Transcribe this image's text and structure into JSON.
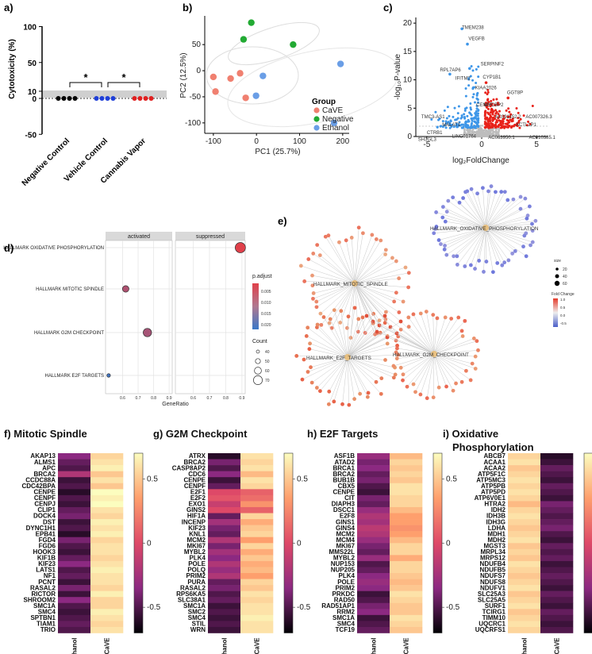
{
  "chart_data": [
    {
      "id": "a",
      "panel_label": "a)",
      "type": "scatter",
      "ylabel": "Cytotoxicity (%)",
      "yticks": [
        100,
        50,
        10,
        0,
        -50
      ],
      "ylim": [
        -50,
        100
      ],
      "categories": [
        "Negative Control",
        "Vehicle Control",
        "Cannabis Vapor"
      ],
      "colors": [
        "#000000",
        "#1f3fd8",
        "#e02020"
      ],
      "values": [
        [
          0,
          0,
          0,
          0
        ],
        [
          0,
          0,
          0,
          0
        ],
        [
          0,
          0,
          0,
          0
        ]
      ],
      "significance": [
        {
          "from": 0,
          "to": 1,
          "label": "*"
        },
        {
          "from": 1,
          "to": 2,
          "label": "*"
        }
      ]
    },
    {
      "id": "b",
      "panel_label": "b)",
      "type": "scatter",
      "xlabel": "PC1 (25.7%)",
      "ylabel": "PC2 (12.5%)",
      "xlim": [
        -120,
        215
      ],
      "ylim": [
        -120,
        105
      ],
      "xticks": [
        -100,
        0,
        100,
        200
      ],
      "yticks": [
        50,
        0,
        -50,
        -100
      ],
      "legend_title": "Group",
      "series": [
        {
          "name": "CaVE",
          "color": "#f08070",
          "points": [
            [
              -60,
              -15
            ],
            [
              -38,
              -5
            ],
            [
              -100,
              -12
            ],
            [
              -95,
              -40
            ],
            [
              -25,
              -52
            ]
          ]
        },
        {
          "name": "Negative",
          "color": "#22aa33",
          "points": [
            [
              -12,
              92
            ],
            [
              -30,
              60
            ],
            [
              85,
              50
            ]
          ]
        },
        {
          "name": "Ethanol",
          "color": "#6a9ee6",
          "points": [
            [
              15,
              -10
            ],
            [
              -1,
              -48
            ],
            [
              195,
              13
            ],
            [
              180,
              -100
            ]
          ]
        }
      ]
    },
    {
      "id": "c",
      "panel_label": "c)",
      "type": "scatter",
      "xlabel": "log₂FoldChange",
      "ylabel": "-log₁₀P-value",
      "xlim": [
        -6,
        6
      ],
      "ylim": [
        0,
        21
      ],
      "xticks": [
        -5,
        0,
        5
      ],
      "yticks": [
        20,
        15,
        10,
        5,
        0
      ],
      "labels": [
        {
          "text": "TMEM238",
          "x": -1.8,
          "y": 19
        },
        {
          "text": "VEGFB",
          "x": -1.2,
          "y": 17
        },
        {
          "text": "SERPINF2",
          "x": -0.1,
          "y": 12.5
        },
        {
          "text": "RPL7AP6",
          "x": -3.8,
          "y": 11.5
        },
        {
          "text": "CYP1B1",
          "x": 0.1,
          "y": 10.2
        },
        {
          "text": "IFITM2",
          "x": -2.4,
          "y": 10
        },
        {
          "text": "GGT8P",
          "x": 2.3,
          "y": 7.5
        },
        {
          "text": "KIAA2026",
          "x": -0.6,
          "y": 8.3
        },
        {
          "text": "MYCBP2",
          "x": 0.2,
          "y": 5.3
        },
        {
          "text": "CENPF",
          "x": -0.5,
          "y": 5.3
        },
        {
          "text": "TMC3-AS1",
          "x": -5.5,
          "y": 3.2
        },
        {
          "text": "AC091152.2",
          "x": 1.2,
          "y": 3.2
        },
        {
          "text": "AC007326.3",
          "x": 4.0,
          "y": 3.2
        },
        {
          "text": "ACTL1P1",
          "x": 3.1,
          "y": 1.8
        },
        {
          "text": "MALAT1",
          "x": -3.6,
          "y": 1.8
        },
        {
          "text": "CTRB1",
          "x": -5.0,
          "y": 0.4
        },
        {
          "text": "SH3GL3",
          "x": -5.8,
          "y": -0.8
        },
        {
          "text": "LINC01764",
          "x": -2.7,
          "y": -0.2
        },
        {
          "text": "AC063950.1",
          "x": 0.6,
          "y": -0.4
        },
        {
          "text": "AC010385.1",
          "x": 4.3,
          "y": -0.4
        }
      ]
    },
    {
      "id": "d",
      "panel_label": "d)",
      "type": "scatter",
      "xlabel": "GeneRatio",
      "xlim": [
        0.5,
        0.9
      ],
      "xticks": [
        "0.6",
        "0.7",
        "0.8",
        "0.9"
      ],
      "facets": [
        "activated",
        "suppressed"
      ],
      "categories": [
        "HALLMARK OXIDATIVE PHOSPHORYLATION",
        "HALLMARK MITOTIC SPINDLE",
        "HALLMARK G2M CHECKPOINT",
        "HALLMARK E2F TARGETS"
      ],
      "points": [
        {
          "term": "HALLMARK OXIDATIVE PHOSPHORYLATION",
          "facet": "suppressed",
          "generatio": 0.89,
          "count": 72,
          "p_adjust": 0.001
        },
        {
          "term": "HALLMARK MITOTIC SPINDLE",
          "facet": "activated",
          "generatio": 0.62,
          "count": 52,
          "p_adjust": 0.007
        },
        {
          "term": "HALLMARK G2M CHECKPOINT",
          "facet": "activated",
          "generatio": 0.76,
          "count": 62,
          "p_adjust": 0.008
        },
        {
          "term": "HALLMARK E2F TARGETS",
          "facet": "activated",
          "generatio": 0.51,
          "count": 36,
          "p_adjust": 0.02
        }
      ],
      "padj_legend": {
        "title": "p.adjust",
        "ticks": [
          "0.005",
          "0.010",
          "0.015",
          "0.020"
        ]
      },
      "count_legend": {
        "title": "Count",
        "ticks": [
          "40",
          "50",
          "60",
          "70"
        ]
      }
    },
    {
      "id": "e",
      "panel_label": "e)",
      "type": "network",
      "hubs": [
        "HALLMARK_OXIDATIVE_PHOSPHORYLATION",
        "HALLMARK_MITOTIC_SPINDLE",
        "HALLMARK_E2F_TARGETS",
        "HALLMARK_G2M_CHECKPOINT"
      ],
      "size_legend": {
        "title": "size",
        "ticks": [
          "20",
          "40",
          "60"
        ]
      },
      "fold_legend": {
        "title": "Fold Change",
        "ticks": [
          "1.0",
          "0.5",
          "0.0",
          "-0.5"
        ]
      }
    },
    {
      "id": "f",
      "type": "heatmap",
      "title": "f) Mitotic Spindle",
      "columns": [
        "Ethanol",
        "CaVE"
      ],
      "rows": [
        "AKAP13",
        "ALMS1",
        "APC",
        "BRCA2",
        "CCDC88A",
        "CDC42BPA",
        "CENPE",
        "CENPF",
        "CENPJ",
        "CLIP1",
        "DOCK4",
        "DST",
        "DYNC1H1",
        "EPB41",
        "FGD4",
        "FGD6",
        "HOOK3",
        "KIF1B",
        "KIF23",
        "LATS1",
        "NF1",
        "PCNT",
        "RASAL2",
        "RICTOR",
        "SHROOM2",
        "SMC1A",
        "SMC4",
        "SPTBN1",
        "TIAM1",
        "TRIO"
      ],
      "values": [
        [
          -0.35,
          0.55
        ],
        [
          -0.45,
          0.6
        ],
        [
          -0.5,
          0.65
        ],
        [
          -0.2,
          0.5
        ],
        [
          -0.55,
          0.6
        ],
        [
          -0.5,
          0.5
        ],
        [
          -0.6,
          0.7
        ],
        [
          -0.5,
          0.65
        ],
        [
          -0.55,
          0.7
        ],
        [
          -0.45,
          0.6
        ],
        [
          -0.4,
          0.55
        ],
        [
          -0.55,
          0.65
        ],
        [
          -0.5,
          0.6
        ],
        [
          -0.6,
          0.65
        ],
        [
          -0.4,
          0.55
        ],
        [
          -0.5,
          0.6
        ],
        [
          -0.55,
          0.6
        ],
        [
          -0.45,
          0.55
        ],
        [
          -0.35,
          0.6
        ],
        [
          -0.5,
          0.65
        ],
        [
          -0.45,
          0.6
        ],
        [
          -0.55,
          0.6
        ],
        [
          -0.4,
          0.55
        ],
        [
          -0.55,
          0.65
        ],
        [
          -0.35,
          0.55
        ],
        [
          -0.5,
          0.55
        ],
        [
          -0.55,
          0.65
        ],
        [
          -0.5,
          0.6
        ],
        [
          -0.45,
          0.55
        ],
        [
          -0.5,
          0.6
        ]
      ],
      "colorbar_ticks": [
        "0.5",
        "0",
        "-0.5"
      ],
      "vmin": -0.7,
      "vmax": 0.7
    },
    {
      "id": "g",
      "type": "heatmap",
      "title": "g) G2M Checkpoint",
      "columns": [
        "Ethanol",
        "CaVE"
      ],
      "rows": [
        "ATRX",
        "BRCA2",
        "CASP8AP2",
        "CDC6",
        "CENPE",
        "CENPF",
        "E2F1",
        "E2F2",
        "EXO1",
        "GINS2",
        "HIF1A",
        "INCENP",
        "KIF23",
        "KNL1",
        "MCM2",
        "MKI67",
        "MYBL2",
        "PLK4",
        "POLE",
        "POLQ",
        "PRIM2",
        "PURA",
        "RASAL2",
        "RPS6KA5",
        "SLC38A1",
        "SMC1A",
        "SMC2",
        "SMC4",
        "STIL",
        "WRN"
      ],
      "values": [
        [
          -0.6,
          0.6
        ],
        [
          -0.4,
          0.55
        ],
        [
          -0.5,
          0.6
        ],
        [
          -0.35,
          0.45
        ],
        [
          -0.55,
          0.6
        ],
        [
          -0.45,
          0.55
        ],
        [
          0.0,
          0.1
        ],
        [
          0.05,
          0.15
        ],
        [
          -0.1,
          0.3
        ],
        [
          0.0,
          0.1
        ],
        [
          -0.45,
          0.55
        ],
        [
          -0.25,
          0.4
        ],
        [
          -0.4,
          0.5
        ],
        [
          -0.45,
          0.55
        ],
        [
          -0.2,
          0.35
        ],
        [
          -0.4,
          0.55
        ],
        [
          -0.25,
          0.4
        ],
        [
          -0.35,
          0.5
        ],
        [
          -0.2,
          0.4
        ],
        [
          -0.3,
          0.45
        ],
        [
          -0.2,
          0.35
        ],
        [
          -0.45,
          0.55
        ],
        [
          -0.4,
          0.5
        ],
        [
          -0.5,
          0.6
        ],
        [
          -0.45,
          0.55
        ],
        [
          -0.55,
          0.6
        ],
        [
          -0.5,
          0.6
        ],
        [
          -0.55,
          0.65
        ],
        [
          -0.5,
          0.6
        ],
        [
          -0.55,
          0.6
        ]
      ],
      "colorbar_ticks": [
        "0.5",
        "0",
        "-0.5"
      ],
      "vmin": -0.7,
      "vmax": 0.7
    },
    {
      "id": "h",
      "type": "heatmap",
      "title": "h) E2F Targets",
      "columns": [
        "Ethanol",
        "CaVE"
      ],
      "rows": [
        "ASF1B",
        "ATAD2",
        "BRCA1",
        "BRCA2",
        "BUB1B",
        "CBX5",
        "CENPE",
        "CIT",
        "DIAPH3",
        "DSCC1",
        "E2F8",
        "GINS1",
        "GINS4",
        "MCM2",
        "MCM4",
        "MKI67",
        "MMS22L",
        "MYBL2",
        "NUP153",
        "NUP205",
        "PLK4",
        "POLE",
        "PRIM2",
        "PRKDC",
        "RAD50",
        "RAD51AP1",
        "RRM2",
        "SMC1A",
        "SMC4",
        "TCF19"
      ],
      "values": [
        [
          -0.3,
          0.45
        ],
        [
          -0.4,
          0.55
        ],
        [
          -0.35,
          0.5
        ],
        [
          -0.45,
          0.55
        ],
        [
          -0.4,
          0.5
        ],
        [
          -0.5,
          0.6
        ],
        [
          -0.55,
          0.6
        ],
        [
          -0.4,
          0.55
        ],
        [
          -0.45,
          0.55
        ],
        [
          -0.3,
          0.45
        ],
        [
          -0.2,
          0.35
        ],
        [
          -0.25,
          0.35
        ],
        [
          -0.15,
          0.3
        ],
        [
          -0.2,
          0.35
        ],
        [
          -0.3,
          0.45
        ],
        [
          -0.4,
          0.55
        ],
        [
          -0.45,
          0.55
        ],
        [
          -0.3,
          0.4
        ],
        [
          -0.5,
          0.55
        ],
        [
          -0.45,
          0.55
        ],
        [
          -0.35,
          0.5
        ],
        [
          -0.3,
          0.45
        ],
        [
          -0.35,
          0.5
        ],
        [
          -0.55,
          0.6
        ],
        [
          -0.5,
          0.55
        ],
        [
          -0.4,
          0.5
        ],
        [
          -0.35,
          0.5
        ],
        [
          -0.55,
          0.6
        ],
        [
          -0.5,
          0.55
        ],
        [
          -0.45,
          0.5
        ]
      ],
      "colorbar_ticks": [
        "0.5",
        "0",
        "-0.5"
      ],
      "vmin": -0.7,
      "vmax": 0.7
    },
    {
      "id": "i",
      "type": "heatmap",
      "title": "i) Oxidative",
      "title_line2": "Phosphorylation",
      "columns": [
        "Ethanol",
        "CaVE"
      ],
      "rows": [
        "ABCB7",
        "ACAA1",
        "ACAA2",
        "ATP5F1C",
        "ATP5MC3",
        "ATP5PB",
        "ATP5PD",
        "ATP6V0E1",
        "HTRA2",
        "IDH2",
        "IDH3B",
        "IDH3G",
        "LDHA",
        "MDH1",
        "MDH2",
        "MGST3",
        "MRPL34",
        "MRPS12",
        "NDUFB4",
        "NDUFB5",
        "NDUFS7",
        "NDUFS8",
        "NDUFV1",
        "SLC25A3",
        "SLC25A5",
        "SURF1",
        "TCIRG1",
        "TIMM10",
        "UQCRC1",
        "UQCRFS1"
      ],
      "values": [
        [
          0.55,
          -0.6
        ],
        [
          0.6,
          -0.55
        ],
        [
          0.5,
          -0.45
        ],
        [
          0.55,
          -0.5
        ],
        [
          0.6,
          -0.55
        ],
        [
          0.55,
          -0.45
        ],
        [
          0.6,
          -0.5
        ],
        [
          0.55,
          -0.55
        ],
        [
          0.45,
          -0.4
        ],
        [
          0.55,
          -0.45
        ],
        [
          0.6,
          -0.5
        ],
        [
          0.55,
          -0.45
        ],
        [
          0.5,
          -0.4
        ],
        [
          0.55,
          -0.5
        ],
        [
          0.6,
          -0.55
        ],
        [
          0.5,
          -0.45
        ],
        [
          0.55,
          -0.5
        ],
        [
          0.5,
          -0.45
        ],
        [
          0.6,
          -0.55
        ],
        [
          0.55,
          -0.5
        ],
        [
          0.5,
          -0.45
        ],
        [
          0.55,
          -0.5
        ],
        [
          0.6,
          -0.55
        ],
        [
          0.5,
          -0.45
        ],
        [
          0.55,
          -0.5
        ],
        [
          0.6,
          -0.55
        ],
        [
          0.5,
          -0.45
        ],
        [
          0.55,
          -0.5
        ],
        [
          0.6,
          -0.55
        ],
        [
          0.55,
          -0.5
        ]
      ],
      "colorbar_ticks": [
        "0.5",
        "0",
        "-0.5"
      ],
      "vmin": -0.7,
      "vmax": 0.7
    }
  ]
}
